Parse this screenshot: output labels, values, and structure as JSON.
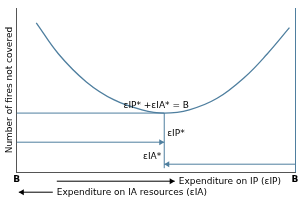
{
  "chart_data": {
    "type": "line",
    "ylabel": "Number of fires not covered",
    "xlabel": "Expenditure on IP (εIP)",
    "xlabel_secondary": "Expenditure on IA resources (εIA)",
    "annotations": [
      "εIP* +εIA* = B",
      "εIP*",
      "εIA*"
    ],
    "x": [
      7,
      15,
      25,
      35,
      45,
      53,
      62,
      72,
      82,
      90,
      98
    ],
    "values": [
      91,
      72,
      55,
      44,
      38,
      36,
      38,
      45,
      58,
      72,
      88
    ],
    "color": "#4f7f9f",
    "marker": "none",
    "line_style": "solid",
    "xlim": [
      0,
      100
    ],
    "ylim": [
      0,
      100
    ],
    "xticks": [
      {
        "value": 0,
        "label": "B"
      },
      {
        "value": 100,
        "label": "B"
      }
    ],
    "tick_labels": "x",
    "grid": false
  }
}
